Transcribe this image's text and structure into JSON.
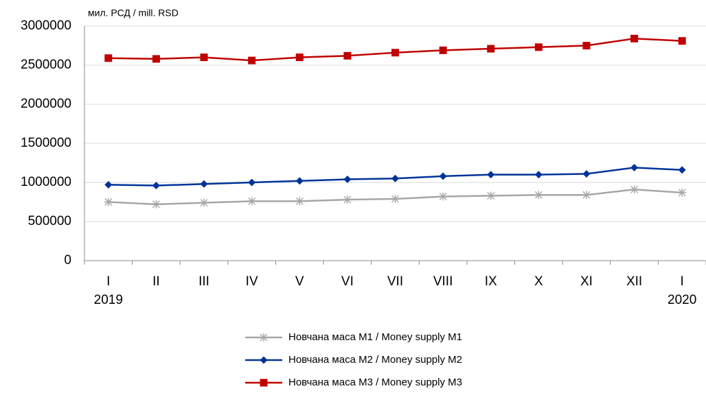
{
  "chart_data": {
    "type": "line",
    "y_label": "мил. РСД / mill. RSD",
    "categories": [
      "I",
      "II",
      "III",
      "IV",
      "V",
      "VI",
      "VII",
      "VIII",
      "IX",
      "X",
      "XI",
      "XII",
      "I"
    ],
    "x_group_labels": [
      "2019",
      "2020"
    ],
    "series": [
      {
        "name": "Новчана маса М1 / Money supply M1",
        "color": "#a6a6a6",
        "marker": "star",
        "values": [
          750000,
          720000,
          740000,
          760000,
          760000,
          780000,
          790000,
          820000,
          830000,
          840000,
          840000,
          910000,
          870000
        ]
      },
      {
        "name": "Новчана маса М2 / Money supply M2",
        "color": "#003399",
        "marker": "diamond",
        "values": [
          970000,
          960000,
          980000,
          1000000,
          1020000,
          1040000,
          1050000,
          1080000,
          1100000,
          1100000,
          1110000,
          1190000,
          1160000
        ]
      },
      {
        "name": "Новчана маса М3 / Money supply M3",
        "color": "#c00000",
        "marker": "square",
        "values": [
          2590000,
          2580000,
          2600000,
          2560000,
          2600000,
          2620000,
          2660000,
          2690000,
          2710000,
          2730000,
          2750000,
          2840000,
          2810000
        ]
      }
    ],
    "ylim": [
      0,
      3000000
    ],
    "yticks": [
      0,
      500000,
      1000000,
      1500000,
      2000000,
      2500000,
      3000000
    ],
    "grid": true,
    "legend": "bottom"
  }
}
